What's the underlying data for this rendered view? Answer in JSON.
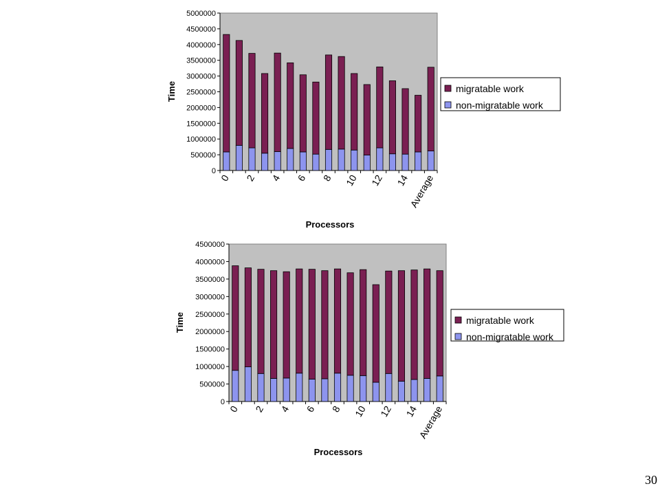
{
  "page_number": "30",
  "colors": {
    "migratable": "#7a1f52",
    "non_migratable": "#8d94ee",
    "plot_bg": "#c0c0c0"
  },
  "chart_data": [
    {
      "type": "bar",
      "stacked": true,
      "xlabel": "Processors",
      "ylabel": "Time",
      "ylim": [
        0,
        5000000
      ],
      "y_ticks": [
        "0",
        "500000",
        "1000000",
        "1500000",
        "2000000",
        "2500000",
        "3000000",
        "3500000",
        "4000000",
        "4500000",
        "5000000"
      ],
      "x_tick_labels": [
        "0",
        "2",
        "4",
        "6",
        "8",
        "10",
        "12",
        "14",
        "Average"
      ],
      "categories": [
        "0",
        "1",
        "2",
        "3",
        "4",
        "5",
        "6",
        "7",
        "8",
        "9",
        "10",
        "11",
        "12",
        "13",
        "14",
        "15",
        "Average"
      ],
      "legend_position": "right",
      "grid": false,
      "series": [
        {
          "name": "non-migratable work",
          "values": [
            590000,
            800000,
            720000,
            550000,
            600000,
            700000,
            590000,
            520000,
            670000,
            680000,
            650000,
            490000,
            720000,
            530000,
            520000,
            590000,
            620000
          ]
        },
        {
          "name": "migratable work",
          "values": [
            3730000,
            3330000,
            3000000,
            2530000,
            3130000,
            2720000,
            2450000,
            2290000,
            3000000,
            2940000,
            2430000,
            2240000,
            2570000,
            2320000,
            2080000,
            1800000,
            2660000
          ]
        }
      ]
    },
    {
      "type": "bar",
      "stacked": true,
      "xlabel": "Processors",
      "ylabel": "Time",
      "ylim": [
        0,
        4500000
      ],
      "y_ticks": [
        "0",
        "500000",
        "1000000",
        "1500000",
        "2000000",
        "2500000",
        "3000000",
        "3500000",
        "4000000",
        "4500000"
      ],
      "x_tick_labels": [
        "0",
        "2",
        "4",
        "6",
        "8",
        "10",
        "12",
        "14",
        "Average"
      ],
      "categories": [
        "0",
        "1",
        "2",
        "3",
        "4",
        "5",
        "6",
        "7",
        "8",
        "9",
        "10",
        "11",
        "12",
        "13",
        "14",
        "15",
        "Average"
      ],
      "legend_position": "right",
      "grid": false,
      "series": [
        {
          "name": "non-migratable work",
          "values": [
            890000,
            990000,
            800000,
            660000,
            670000,
            810000,
            640000,
            650000,
            810000,
            750000,
            740000,
            550000,
            800000,
            580000,
            630000,
            660000,
            730000
          ]
        },
        {
          "name": "migratable work",
          "values": [
            2990000,
            2830000,
            2980000,
            3080000,
            3040000,
            2980000,
            3140000,
            3090000,
            2980000,
            2930000,
            3030000,
            2790000,
            2930000,
            3160000,
            3130000,
            3130000,
            3010000
          ]
        }
      ]
    }
  ]
}
